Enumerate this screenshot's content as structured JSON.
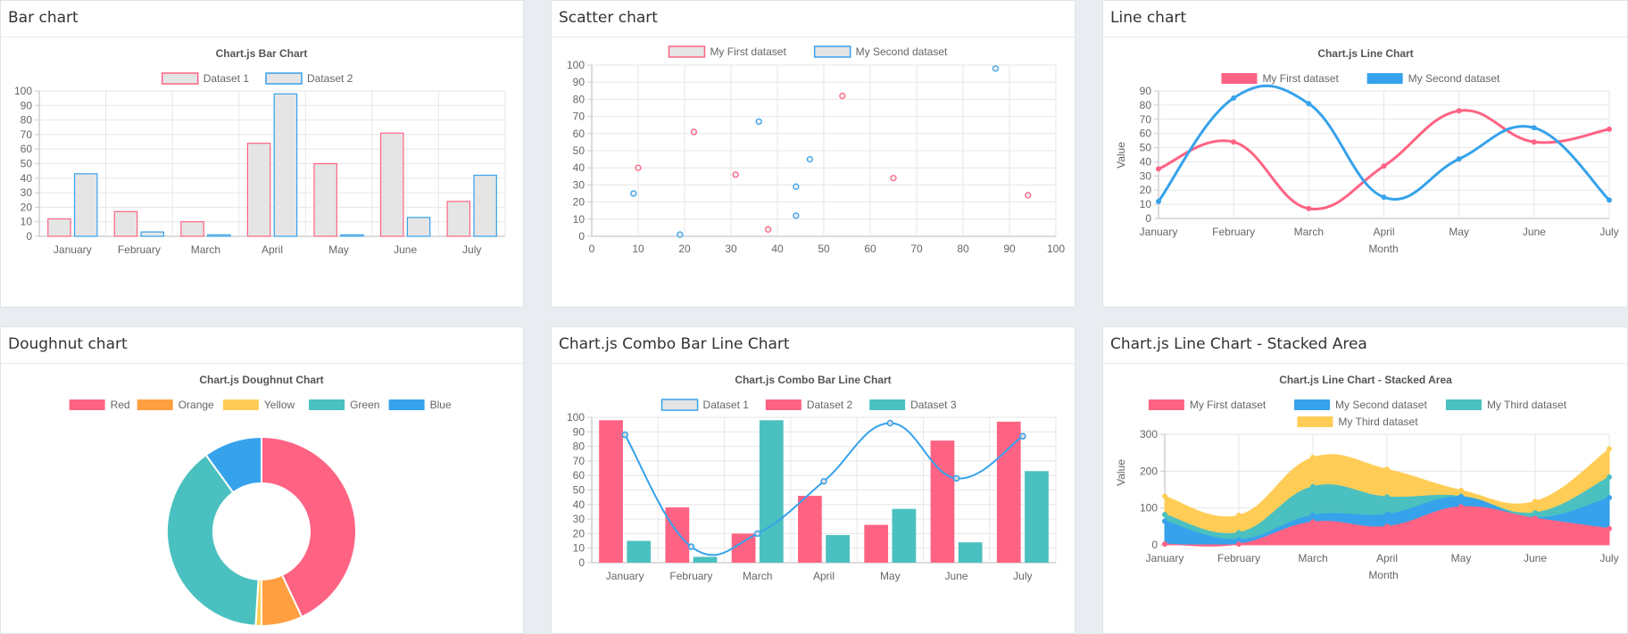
{
  "cards": [
    {
      "header": "Bar chart",
      "chart_data": {
        "type": "bar",
        "title": "Chart.js Bar Chart",
        "categories": [
          "January",
          "February",
          "March",
          "April",
          "May",
          "June",
          "July"
        ],
        "series": [
          {
            "name": "Dataset 1",
            "values": [
              12,
              17,
              10,
              64,
              50,
              71,
              24
            ],
            "stroke": "#ff6384",
            "fill": "#e5e5e5"
          },
          {
            "name": "Dataset 2",
            "values": [
              43,
              3,
              1,
              98,
              1,
              13,
              42
            ],
            "stroke": "#36a2eb",
            "fill": "#e5e5e5"
          }
        ],
        "ylim": [
          0,
          100
        ],
        "yticks": [
          "0",
          "10",
          "20",
          "30",
          "40",
          "50",
          "60",
          "70",
          "80",
          "90",
          "100"
        ],
        "grid": true,
        "legend": "top"
      }
    },
    {
      "header": "Scatter chart",
      "chart_data": {
        "type": "scatter",
        "title": "",
        "series": [
          {
            "name": "My First dataset",
            "stroke": "#ff6384",
            "points": [
              [
                10,
                40
              ],
              [
                22,
                61
              ],
              [
                31,
                36
              ],
              [
                38,
                4
              ],
              [
                54,
                82
              ],
              [
                65,
                34
              ],
              [
                94,
                24
              ]
            ]
          },
          {
            "name": "My Second dataset",
            "stroke": "#36a2eb",
            "points": [
              [
                9,
                25
              ],
              [
                19,
                1
              ],
              [
                36,
                67
              ],
              [
                44,
                29
              ],
              [
                44,
                12
              ],
              [
                47,
                45
              ],
              [
                87,
                98
              ]
            ]
          }
        ],
        "xlim": [
          0,
          100
        ],
        "ylim": [
          0,
          100
        ],
        "xticks": [
          "0",
          "10",
          "20",
          "30",
          "40",
          "50",
          "60",
          "70",
          "80",
          "90",
          "100"
        ],
        "yticks": [
          "0",
          "10",
          "20",
          "30",
          "40",
          "50",
          "60",
          "70",
          "80",
          "90",
          "100"
        ],
        "grid": true,
        "legend": "top"
      }
    },
    {
      "header": "Line chart",
      "chart_data": {
        "type": "line",
        "title": "Chart.js Line Chart",
        "categories": [
          "January",
          "February",
          "March",
          "April",
          "May",
          "June",
          "July"
        ],
        "series": [
          {
            "name": "My First dataset",
            "values": [
              35,
              54,
              7,
              37,
              76,
              54,
              63
            ],
            "color": "#ff6384"
          },
          {
            "name": "My Second dataset",
            "values": [
              12,
              85,
              81,
              15,
              42,
              64,
              13
            ],
            "color": "#36a2eb"
          }
        ],
        "ylim": [
          0,
          90
        ],
        "yticks": [
          "0",
          "10",
          "20",
          "30",
          "40",
          "50",
          "60",
          "70",
          "80",
          "90"
        ],
        "xlabel": "Month",
        "ylabel": "Value",
        "grid": true,
        "legend": "top"
      }
    },
    {
      "header": "Doughnut chart",
      "chart_data": {
        "type": "pie",
        "title": "Chart.js Doughnut Chart",
        "labels": [
          "Red",
          "Orange",
          "Yellow",
          "Green",
          "Blue"
        ],
        "values": [
          43,
          7,
          1,
          39,
          10
        ],
        "colors": [
          "#ff6384",
          "#ff9f40",
          "#ffcd56",
          "#4bc0c0",
          "#36a2eb"
        ],
        "legend": "top"
      }
    },
    {
      "header": "Chart.js Combo Bar Line Chart",
      "chart_data": {
        "type": "bar",
        "title": "Chart.js Combo Bar Line Chart",
        "categories": [
          "January",
          "February",
          "March",
          "April",
          "May",
          "June",
          "July"
        ],
        "series": [
          {
            "name": "Dataset 1",
            "kind": "line",
            "values": [
              88,
              11,
              20,
              56,
              96,
              58,
              87
            ],
            "color": "#36a2eb"
          },
          {
            "name": "Dataset 2",
            "kind": "bar",
            "values": [
              98,
              38,
              20,
              46,
              26,
              84,
              97
            ],
            "color": "#ff6384"
          },
          {
            "name": "Dataset 3",
            "kind": "bar",
            "values": [
              15,
              4,
              98,
              19,
              37,
              14,
              63
            ],
            "color": "#4bc0c0"
          }
        ],
        "ylim": [
          0,
          100
        ],
        "yticks": [
          "0",
          "10",
          "20",
          "30",
          "40",
          "50",
          "60",
          "70",
          "80",
          "90",
          "100"
        ],
        "grid": true,
        "legend": "top"
      }
    },
    {
      "header": "Chart.js Line Chart - Stacked Area",
      "chart_data": {
        "type": "area",
        "title": "Chart.js Line Chart - Stacked Area",
        "categories": [
          "January",
          "February",
          "March",
          "April",
          "May",
          "June",
          "July"
        ],
        "series": [
          {
            "name": "My First dataset",
            "values": [
              2,
              2,
              62,
              50,
              103,
              72,
              44
            ],
            "color": "#ff6384"
          },
          {
            "name": "My Second dataset",
            "values": [
              62,
              12,
              18,
              33,
              27,
              1,
              84
            ],
            "color": "#36a2eb"
          },
          {
            "name": "My Third dataset",
            "values": [
              18,
              19,
              78,
              47,
              2,
              14,
              56
            ],
            "color": "#4bc0c0"
          },
          {
            "name": "My Third dataset",
            "values": [
              50,
              47,
              79,
              75,
              16,
              31,
              76
            ],
            "color": "#ffcd56"
          }
        ],
        "stacked": true,
        "ylim": [
          0,
          300
        ],
        "yticks": [
          "0",
          "100",
          "200",
          "300"
        ],
        "xlabel": "Month",
        "ylabel": "Value",
        "grid": true,
        "legend": "top"
      }
    }
  ]
}
